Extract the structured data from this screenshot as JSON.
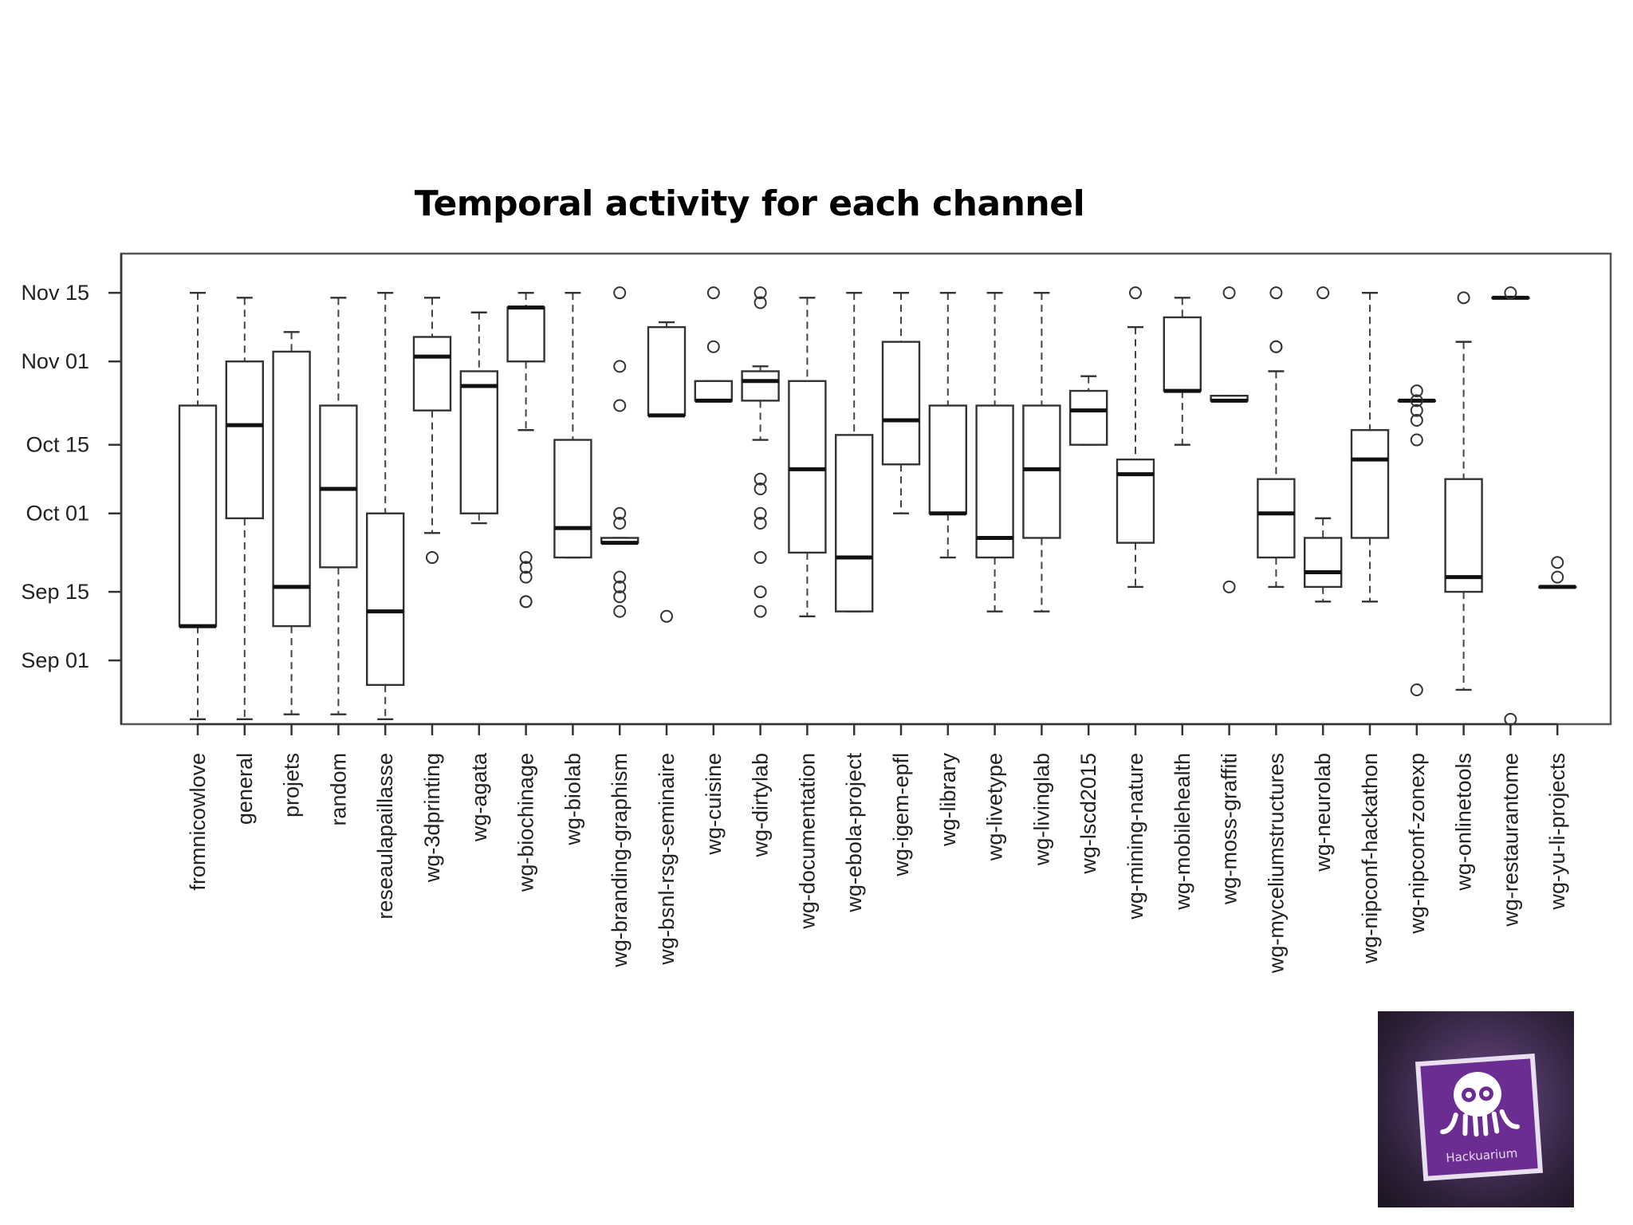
{
  "chart_data": {
    "type": "boxplot",
    "title": "Temporal activity for each channel",
    "y_axis": {
      "type": "date",
      "range": [
        "2014-08-19",
        "2014-11-23"
      ],
      "ticks": [
        {
          "date": "2014-09-01",
          "label": "Sep 01"
        },
        {
          "date": "2014-09-15",
          "label": "Sep 15"
        },
        {
          "date": "2014-10-01",
          "label": "Oct 01"
        },
        {
          "date": "2014-10-15",
          "label": "Oct 15"
        },
        {
          "date": "2014-11-01",
          "label": "Nov 01"
        },
        {
          "date": "2014-11-15",
          "label": "Nov 15"
        }
      ]
    },
    "categories": [
      "fromnicowlove",
      "general",
      "projets",
      "random",
      "reseaulapaillasse",
      "wg-3dprinting",
      "wg-agata",
      "wg-biochinage",
      "wg-biolab",
      "wg-branding-graphism",
      "wg-bsnl-rsg-seminaire",
      "wg-cuisine",
      "wg-dirtylab",
      "wg-documentation",
      "wg-ebola-project",
      "wg-igem-epfl",
      "wg-library",
      "wg-livetype",
      "wg-livinglab",
      "wg-lscd2015",
      "wg-mining-nature",
      "wg-mobilehealth",
      "wg-moss-graffiti",
      "wg-myceliumstructures",
      "wg-neurolab",
      "wg-nipconf-hackathon",
      "wg-nipconf-zonexp",
      "wg-onlinetools",
      "wg-restaurantome",
      "wg-yu-li-projects"
    ],
    "boxes": [
      {
        "min": "2014-08-20",
        "q1": "2014-09-08",
        "median": "2014-09-08",
        "q3": "2014-10-23",
        "max": "2014-11-15",
        "outliers": []
      },
      {
        "min": "2014-08-20",
        "q1": "2014-09-30",
        "median": "2014-10-19",
        "q3": "2014-11-01",
        "max": "2014-11-14",
        "outliers": []
      },
      {
        "min": "2014-08-21",
        "q1": "2014-09-08",
        "median": "2014-09-16",
        "q3": "2014-11-03",
        "max": "2014-11-07",
        "outliers": []
      },
      {
        "min": "2014-08-21",
        "q1": "2014-09-20",
        "median": "2014-10-06",
        "q3": "2014-10-23",
        "max": "2014-11-14",
        "outliers": []
      },
      {
        "min": "2014-08-20",
        "q1": "2014-08-27",
        "median": "2014-09-11",
        "q3": "2014-10-01",
        "max": "2014-11-15",
        "outliers": []
      },
      {
        "min": "2014-09-27",
        "q1": "2014-10-22",
        "median": "2014-11-02",
        "q3": "2014-11-06",
        "max": "2014-11-14",
        "outliers": [
          "2014-09-22"
        ]
      },
      {
        "min": "2014-09-29",
        "q1": "2014-10-01",
        "median": "2014-10-27",
        "q3": "2014-10-30",
        "max": "2014-11-11",
        "outliers": []
      },
      {
        "min": "2014-10-18",
        "q1": "2014-11-01",
        "median": "2014-11-12",
        "q3": "2014-11-12",
        "max": "2014-11-15",
        "outliers": [
          "2014-09-22",
          "2014-09-20",
          "2014-09-18",
          "2014-09-13",
          "2014-09-13"
        ]
      },
      {
        "min": "2014-09-22",
        "q1": "2014-09-22",
        "median": "2014-09-28",
        "q3": "2014-10-16",
        "max": "2014-11-15",
        "outliers": []
      },
      {
        "min": "2014-09-25",
        "q1": "2014-09-25",
        "median": "2014-09-25",
        "q3": "2014-09-26",
        "max": "2014-09-26",
        "outliers": [
          "2014-11-15",
          "2014-10-31",
          "2014-10-23",
          "2014-10-01",
          "2014-09-29",
          "2014-09-18",
          "2014-09-16",
          "2014-09-14",
          "2014-09-11"
        ]
      },
      {
        "min": "2014-10-21",
        "q1": "2014-10-21",
        "median": "2014-10-21",
        "q3": "2014-11-08",
        "max": "2014-11-09",
        "outliers": [
          "2014-09-10"
        ]
      },
      {
        "min": "2014-10-24",
        "q1": "2014-10-24",
        "median": "2014-10-24",
        "q3": "2014-10-28",
        "max": "2014-10-28",
        "outliers": [
          "2014-11-15",
          "2014-11-04"
        ]
      },
      {
        "min": "2014-10-16",
        "q1": "2014-10-24",
        "median": "2014-10-28",
        "q3": "2014-10-30",
        "max": "2014-10-31",
        "outliers": [
          "2014-11-15",
          "2014-11-13",
          "2014-10-08",
          "2014-10-06",
          "2014-10-01",
          "2014-09-29",
          "2014-09-22",
          "2014-09-15",
          "2014-09-11"
        ]
      },
      {
        "min": "2014-09-10",
        "q1": "2014-09-23",
        "median": "2014-10-10",
        "q3": "2014-10-28",
        "max": "2014-11-14",
        "outliers": []
      },
      {
        "min": "2014-09-11",
        "q1": "2014-09-11",
        "median": "2014-09-22",
        "q3": "2014-10-17",
        "max": "2014-11-15",
        "outliers": []
      },
      {
        "min": "2014-10-01",
        "q1": "2014-10-11",
        "median": "2014-10-20",
        "q3": "2014-11-05",
        "max": "2014-11-15",
        "outliers": []
      },
      {
        "min": "2014-09-22",
        "q1": "2014-10-01",
        "median": "2014-10-01",
        "q3": "2014-10-23",
        "max": "2014-11-15",
        "outliers": []
      },
      {
        "min": "2014-09-11",
        "q1": "2014-09-22",
        "median": "2014-09-26",
        "q3": "2014-10-23",
        "max": "2014-11-15",
        "outliers": []
      },
      {
        "min": "2014-09-11",
        "q1": "2014-09-26",
        "median": "2014-10-10",
        "q3": "2014-10-23",
        "max": "2014-11-15",
        "outliers": []
      },
      {
        "min": "2014-10-15",
        "q1": "2014-10-15",
        "median": "2014-10-22",
        "q3": "2014-10-26",
        "max": "2014-10-29",
        "outliers": []
      },
      {
        "min": "2014-09-16",
        "q1": "2014-09-25",
        "median": "2014-10-09",
        "q3": "2014-10-12",
        "max": "2014-11-08",
        "outliers": [
          "2014-11-15"
        ]
      },
      {
        "min": "2014-10-15",
        "q1": "2014-10-26",
        "median": "2014-10-26",
        "q3": "2014-11-10",
        "max": "2014-11-14",
        "outliers": []
      },
      {
        "min": "2014-10-24",
        "q1": "2014-10-24",
        "median": "2014-10-24",
        "q3": "2014-10-25",
        "max": "2014-10-25",
        "outliers": [
          "2014-11-15",
          "2014-09-16"
        ]
      },
      {
        "min": "2014-09-16",
        "q1": "2014-09-22",
        "median": "2014-10-01",
        "q3": "2014-10-08",
        "max": "2014-10-30",
        "outliers": [
          "2014-11-15",
          "2014-11-04",
          "2014-11-04"
        ]
      },
      {
        "min": "2014-09-13",
        "q1": "2014-09-16",
        "median": "2014-09-19",
        "q3": "2014-09-26",
        "max": "2014-09-30",
        "outliers": [
          "2014-11-15"
        ]
      },
      {
        "min": "2014-09-13",
        "q1": "2014-09-26",
        "median": "2014-10-12",
        "q3": "2014-10-18",
        "max": "2014-11-15",
        "outliers": []
      },
      {
        "min": "2014-10-24",
        "q1": "2014-10-24",
        "median": "2014-10-24",
        "q3": "2014-10-24",
        "max": "2014-10-24",
        "outliers": [
          "2014-10-26",
          "2014-10-24",
          "2014-10-22",
          "2014-10-20",
          "2014-10-16",
          "2014-08-26"
        ]
      },
      {
        "min": "2014-08-26",
        "q1": "2014-09-15",
        "median": "2014-09-18",
        "q3": "2014-10-08",
        "max": "2014-11-05",
        "outliers": [
          "2014-11-14"
        ]
      },
      {
        "min": "2014-11-14",
        "q1": "2014-11-14",
        "median": "2014-11-14",
        "q3": "2014-11-14",
        "max": "2014-11-14",
        "outliers": [
          "2014-11-15",
          "2014-08-20"
        ]
      },
      {
        "min": "2014-09-16",
        "q1": "2014-09-16",
        "median": "2014-09-16",
        "q3": "2014-09-16",
        "max": "2014-09-16",
        "outliers": [
          "2014-09-21",
          "2014-09-18"
        ]
      }
    ]
  },
  "logo": {
    "text": "Hackuarium",
    "icon": "octopus-icon"
  }
}
